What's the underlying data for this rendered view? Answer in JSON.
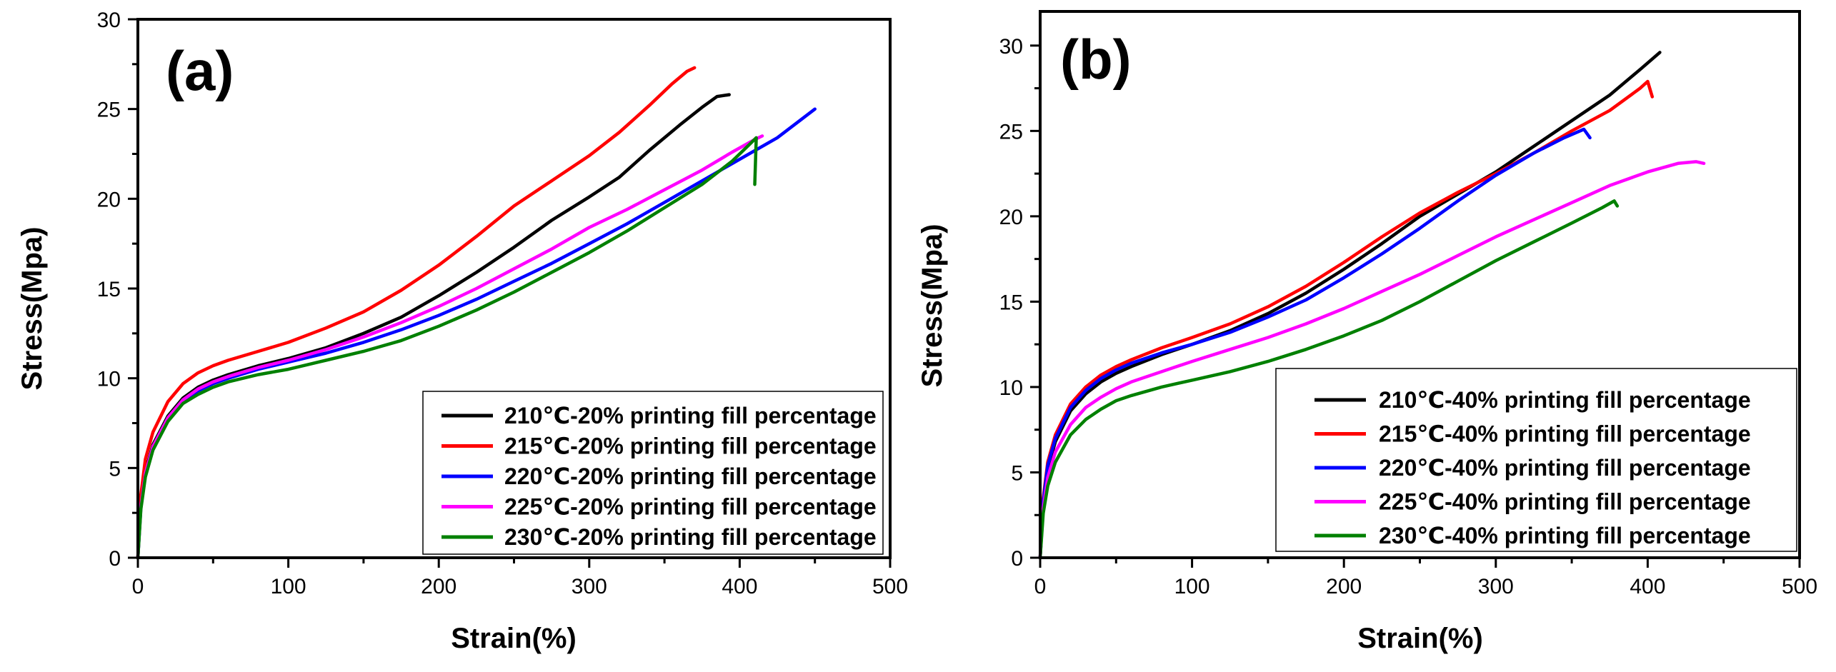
{
  "chart_data": [
    {
      "type": "line",
      "panel_label": "(a)",
      "xlabel": "Strain(%)",
      "ylabel": "Stress(Mpa)",
      "xlim": [
        0,
        500
      ],
      "ylim": [
        0,
        30
      ],
      "xticks": [
        "0",
        "100",
        "200",
        "300",
        "400",
        "500"
      ],
      "yticks": [
        "0",
        "5",
        "10",
        "15",
        "20",
        "25",
        "30"
      ],
      "legend_position": "bottom-right",
      "series": [
        {
          "name": "210℃-20% printing fill percentage",
          "color": "#000000",
          "points": [
            [
              0,
              0
            ],
            [
              2,
              3
            ],
            [
              5,
              4.8
            ],
            [
              10,
              6.3
            ],
            [
              20,
              7.9
            ],
            [
              30,
              8.9
            ],
            [
              40,
              9.5
            ],
            [
              50,
              9.9
            ],
            [
              60,
              10.2
            ],
            [
              80,
              10.7
            ],
            [
              100,
              11.1
            ],
            [
              125,
              11.7
            ],
            [
              150,
              12.5
            ],
            [
              175,
              13.4
            ],
            [
              200,
              14.6
            ],
            [
              225,
              15.9
            ],
            [
              250,
              17.3
            ],
            [
              275,
              18.8
            ],
            [
              300,
              20.1
            ],
            [
              320,
              21.2
            ],
            [
              340,
              22.7
            ],
            [
              360,
              24.1
            ],
            [
              375,
              25.1
            ],
            [
              385,
              25.7
            ],
            [
              393,
              25.8
            ]
          ]
        },
        {
          "name": "215℃-20% printing fill percentage",
          "color": "#ff0000",
          "points": [
            [
              0,
              0
            ],
            [
              2,
              3.5
            ],
            [
              5,
              5.5
            ],
            [
              10,
              7.0
            ],
            [
              20,
              8.7
            ],
            [
              30,
              9.7
            ],
            [
              40,
              10.3
            ],
            [
              50,
              10.7
            ],
            [
              60,
              11.0
            ],
            [
              80,
              11.5
            ],
            [
              100,
              12.0
            ],
            [
              125,
              12.8
            ],
            [
              150,
              13.7
            ],
            [
              175,
              14.9
            ],
            [
              200,
              16.3
            ],
            [
              225,
              17.9
            ],
            [
              250,
              19.6
            ],
            [
              275,
              21.0
            ],
            [
              300,
              22.4
            ],
            [
              320,
              23.7
            ],
            [
              340,
              25.2
            ],
            [
              355,
              26.4
            ],
            [
              365,
              27.1
            ],
            [
              370,
              27.3
            ]
          ]
        },
        {
          "name": "220℃-20% printing fill percentage",
          "color": "#0000ff",
          "points": [
            [
              0,
              0
            ],
            [
              2,
              2.8
            ],
            [
              5,
              4.6
            ],
            [
              10,
              6.1
            ],
            [
              20,
              7.7
            ],
            [
              30,
              8.7
            ],
            [
              40,
              9.3
            ],
            [
              50,
              9.7
            ],
            [
              60,
              10.0
            ],
            [
              80,
              10.5
            ],
            [
              100,
              10.9
            ],
            [
              125,
              11.4
            ],
            [
              150,
              12.0
            ],
            [
              175,
              12.7
            ],
            [
              200,
              13.5
            ],
            [
              225,
              14.4
            ],
            [
              250,
              15.4
            ],
            [
              275,
              16.4
            ],
            [
              300,
              17.5
            ],
            [
              325,
              18.6
            ],
            [
              350,
              19.8
            ],
            [
              375,
              21.0
            ],
            [
              400,
              22.2
            ],
            [
              425,
              23.4
            ],
            [
              450,
              25.0
            ]
          ]
        },
        {
          "name": "225℃-20% printing fill percentage",
          "color": "#ff00ff",
          "points": [
            [
              0,
              0
            ],
            [
              2,
              2.9
            ],
            [
              5,
              4.7
            ],
            [
              10,
              6.2
            ],
            [
              20,
              7.8
            ],
            [
              30,
              8.8
            ],
            [
              40,
              9.4
            ],
            [
              50,
              9.8
            ],
            [
              60,
              10.1
            ],
            [
              80,
              10.6
            ],
            [
              100,
              11.0
            ],
            [
              125,
              11.6
            ],
            [
              150,
              12.3
            ],
            [
              175,
              13.1
            ],
            [
              200,
              14.0
            ],
            [
              225,
              15.0
            ],
            [
              250,
              16.1
            ],
            [
              275,
              17.2
            ],
            [
              300,
              18.4
            ],
            [
              325,
              19.4
            ],
            [
              350,
              20.5
            ],
            [
              375,
              21.6
            ],
            [
              395,
              22.6
            ],
            [
              410,
              23.3
            ],
            [
              415,
              23.5
            ]
          ]
        },
        {
          "name": "230℃-20% printing fill percentage",
          "color": "#008000",
          "points": [
            [
              0,
              0
            ],
            [
              2,
              2.7
            ],
            [
              5,
              4.5
            ],
            [
              10,
              6.0
            ],
            [
              20,
              7.6
            ],
            [
              30,
              8.6
            ],
            [
              40,
              9.1
            ],
            [
              50,
              9.5
            ],
            [
              60,
              9.8
            ],
            [
              80,
              10.2
            ],
            [
              100,
              10.5
            ],
            [
              125,
              11.0
            ],
            [
              150,
              11.5
            ],
            [
              175,
              12.1
            ],
            [
              200,
              12.9
            ],
            [
              225,
              13.8
            ],
            [
              250,
              14.8
            ],
            [
              275,
              15.9
            ],
            [
              300,
              17.0
            ],
            [
              325,
              18.2
            ],
            [
              350,
              19.5
            ],
            [
              375,
              20.8
            ],
            [
              395,
              22.1
            ],
            [
              405,
              22.9
            ],
            [
              411,
              23.4
            ],
            [
              410,
              20.8
            ]
          ]
        }
      ]
    },
    {
      "type": "line",
      "panel_label": "(b)",
      "xlabel": "Strain(%)",
      "ylabel": "Stress(Mpa)",
      "xlim": [
        0,
        500
      ],
      "ylim": [
        0,
        32
      ],
      "xticks": [
        "0",
        "100",
        "200",
        "300",
        "400",
        "500"
      ],
      "yticks": [
        "0",
        "5",
        "10",
        "15",
        "20",
        "25",
        "30"
      ],
      "legend_position": "bottom-right",
      "series": [
        {
          "name": "210℃-40% printing fill percentage",
          "color": "#000000",
          "points": [
            [
              0,
              0
            ],
            [
              2,
              3.2
            ],
            [
              5,
              5.2
            ],
            [
              10,
              6.8
            ],
            [
              20,
              8.6
            ],
            [
              30,
              9.6
            ],
            [
              40,
              10.3
            ],
            [
              50,
              10.8
            ],
            [
              60,
              11.2
            ],
            [
              80,
              11.9
            ],
            [
              100,
              12.5
            ],
            [
              125,
              13.3
            ],
            [
              150,
              14.3
            ],
            [
              175,
              15.5
            ],
            [
              200,
              16.9
            ],
            [
              225,
              18.4
            ],
            [
              250,
              20.0
            ],
            [
              275,
              21.3
            ],
            [
              300,
              22.6
            ],
            [
              325,
              24.1
            ],
            [
              350,
              25.6
            ],
            [
              375,
              27.1
            ],
            [
              395,
              28.6
            ],
            [
              408,
              29.6
            ]
          ]
        },
        {
          "name": "215℃-40% printing fill percentage",
          "color": "#ff0000",
          "points": [
            [
              0,
              0
            ],
            [
              2,
              3.5
            ],
            [
              5,
              5.6
            ],
            [
              10,
              7.2
            ],
            [
              20,
              9.0
            ],
            [
              30,
              10.0
            ],
            [
              40,
              10.7
            ],
            [
              50,
              11.2
            ],
            [
              60,
              11.6
            ],
            [
              80,
              12.3
            ],
            [
              100,
              12.9
            ],
            [
              125,
              13.7
            ],
            [
              150,
              14.7
            ],
            [
              175,
              15.9
            ],
            [
              200,
              17.3
            ],
            [
              225,
              18.8
            ],
            [
              250,
              20.2
            ],
            [
              275,
              21.4
            ],
            [
              300,
              22.5
            ],
            [
              325,
              23.7
            ],
            [
              350,
              25.0
            ],
            [
              375,
              26.2
            ],
            [
              395,
              27.5
            ],
            [
              400,
              27.9
            ],
            [
              403,
              27.0
            ]
          ]
        },
        {
          "name": "220℃-40% printing fill percentage",
          "color": "#0000ff",
          "points": [
            [
              0,
              0
            ],
            [
              2,
              3.3
            ],
            [
              5,
              5.4
            ],
            [
              10,
              7.0
            ],
            [
              20,
              8.8
            ],
            [
              30,
              9.8
            ],
            [
              40,
              10.5
            ],
            [
              50,
              11.0
            ],
            [
              60,
              11.4
            ],
            [
              80,
              12.0
            ],
            [
              100,
              12.5
            ],
            [
              125,
              13.2
            ],
            [
              150,
              14.1
            ],
            [
              175,
              15.1
            ],
            [
              200,
              16.4
            ],
            [
              225,
              17.8
            ],
            [
              250,
              19.3
            ],
            [
              275,
              20.9
            ],
            [
              300,
              22.4
            ],
            [
              325,
              23.7
            ],
            [
              345,
              24.6
            ],
            [
              358,
              25.1
            ],
            [
              362,
              24.6
            ]
          ]
        },
        {
          "name": "225℃-40% printing fill percentage",
          "color": "#ff00ff",
          "points": [
            [
              0,
              0
            ],
            [
              2,
              2.9
            ],
            [
              5,
              4.7
            ],
            [
              10,
              6.2
            ],
            [
              20,
              7.8
            ],
            [
              30,
              8.8
            ],
            [
              40,
              9.4
            ],
            [
              50,
              9.9
            ],
            [
              60,
              10.3
            ],
            [
              80,
              10.9
            ],
            [
              100,
              11.5
            ],
            [
              125,
              12.2
            ],
            [
              150,
              12.9
            ],
            [
              175,
              13.7
            ],
            [
              200,
              14.6
            ],
            [
              225,
              15.6
            ],
            [
              250,
              16.6
            ],
            [
              275,
              17.7
            ],
            [
              300,
              18.8
            ],
            [
              325,
              19.8
            ],
            [
              350,
              20.8
            ],
            [
              375,
              21.8
            ],
            [
              400,
              22.6
            ],
            [
              420,
              23.1
            ],
            [
              432,
              23.2
            ],
            [
              437,
              23.1
            ]
          ]
        },
        {
          "name": "230℃-40% printing fill percentage",
          "color": "#008000",
          "points": [
            [
              0,
              0
            ],
            [
              2,
              2.6
            ],
            [
              5,
              4.2
            ],
            [
              10,
              5.6
            ],
            [
              20,
              7.2
            ],
            [
              30,
              8.1
            ],
            [
              40,
              8.7
            ],
            [
              50,
              9.2
            ],
            [
              60,
              9.5
            ],
            [
              80,
              10.0
            ],
            [
              100,
              10.4
            ],
            [
              125,
              10.9
            ],
            [
              150,
              11.5
            ],
            [
              175,
              12.2
            ],
            [
              200,
              13.0
            ],
            [
              225,
              13.9
            ],
            [
              250,
              15.0
            ],
            [
              275,
              16.2
            ],
            [
              300,
              17.4
            ],
            [
              325,
              18.5
            ],
            [
              350,
              19.6
            ],
            [
              370,
              20.5
            ],
            [
              378,
              20.9
            ],
            [
              380,
              20.6
            ]
          ]
        }
      ]
    }
  ]
}
